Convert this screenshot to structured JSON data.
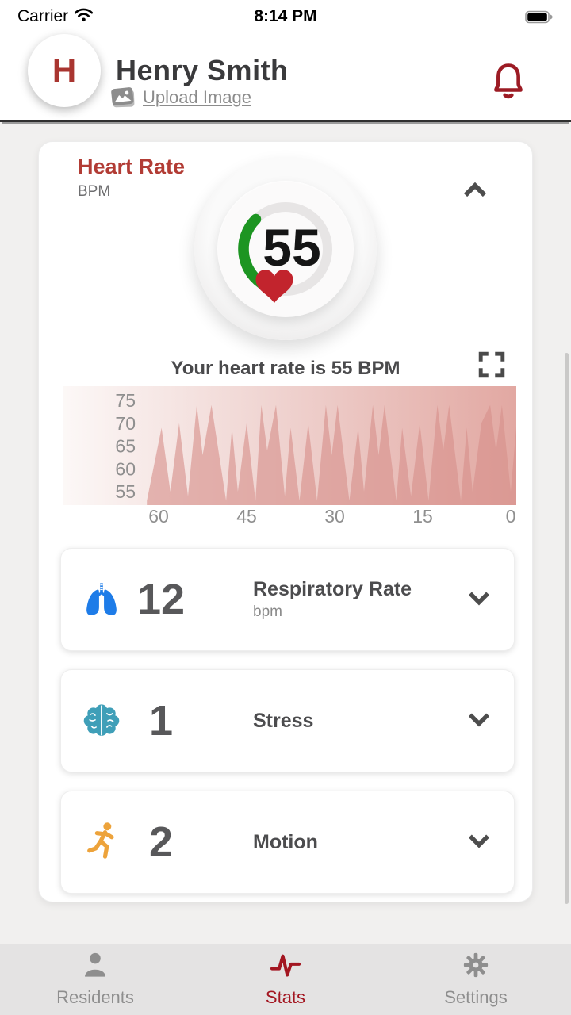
{
  "status_bar": {
    "carrier": "Carrier",
    "time": "8:14 PM"
  },
  "header": {
    "avatar_letter": "H",
    "name": "Henry Smith",
    "upload_label": "Upload Image"
  },
  "heart_card": {
    "title": "Heart Rate",
    "unit": "BPM",
    "value": "55",
    "caption": "Your heart rate is 55 BPM"
  },
  "metrics": [
    {
      "icon": "lungs-icon",
      "value": "12",
      "label": "Respiratory Rate",
      "unit": "bpm",
      "icon_color": "#1e7ce8"
    },
    {
      "icon": "brain-icon",
      "value": "1",
      "label": "Stress",
      "unit": "",
      "icon_color": "#3f9fb8"
    },
    {
      "icon": "running-icon",
      "value": "2",
      "label": "Motion",
      "unit": "",
      "icon_color": "#eda33b"
    }
  ],
  "tab_bar": {
    "items": [
      {
        "label": "Residents",
        "icon": "person-icon",
        "active": false
      },
      {
        "label": "Stats",
        "icon": "pulse-icon",
        "active": true
      },
      {
        "label": "Settings",
        "icon": "gear-icon",
        "active": false
      }
    ],
    "active_color": "#a31621",
    "inactive_color": "#8e8e8e"
  },
  "colors": {
    "accent_red": "#b23c35",
    "bell_red": "#9c1b24",
    "gauge_green": "#1d9522",
    "heart_red": "#c2242d",
    "chart_fill": "#d6908a",
    "chart_bg_left": "#fcf8f7",
    "chart_bg_right": "#e2a8a2"
  },
  "chart_data": {
    "type": "area",
    "title": "Your heart rate is 55 BPM",
    "xlabel": "",
    "ylabel": "",
    "x_ticks": [
      60,
      45,
      30,
      15,
      0
    ],
    "y_ticks": [
      75,
      70,
      65,
      60,
      55
    ],
    "x_range": [
      62,
      -1
    ],
    "y_range": [
      52,
      77
    ],
    "grid": false,
    "legend": "none",
    "series": [
      {
        "name": "heart_rate_bpm",
        "points": [
          [
            62,
            53
          ],
          [
            59.5,
            69
          ],
          [
            58,
            55
          ],
          [
            56.5,
            70
          ],
          [
            55,
            54
          ],
          [
            53.5,
            74
          ],
          [
            52.5,
            63
          ],
          [
            51,
            74
          ],
          [
            48.5,
            53
          ],
          [
            47.5,
            69
          ],
          [
            46.5,
            55
          ],
          [
            45,
            70
          ],
          [
            43.5,
            53
          ],
          [
            42.5,
            74
          ],
          [
            41.5,
            64
          ],
          [
            40,
            74
          ],
          [
            38.5,
            54
          ],
          [
            37.5,
            69
          ],
          [
            36,
            53
          ],
          [
            34.5,
            70
          ],
          [
            33,
            53
          ],
          [
            31.5,
            74
          ],
          [
            30.5,
            63
          ],
          [
            29.5,
            74
          ],
          [
            27.5,
            53
          ],
          [
            26,
            69
          ],
          [
            25,
            55
          ],
          [
            23.5,
            74
          ],
          [
            22.5,
            63
          ],
          [
            21.5,
            74
          ],
          [
            19.5,
            53
          ],
          [
            18.5,
            69
          ],
          [
            17,
            54
          ],
          [
            15.5,
            70
          ],
          [
            14,
            53
          ],
          [
            12.5,
            74
          ],
          [
            11.5,
            64
          ],
          [
            10.5,
            74
          ],
          [
            8.5,
            53
          ],
          [
            7.5,
            69
          ],
          [
            6.5,
            55
          ],
          [
            5,
            70
          ],
          [
            3.5,
            74
          ],
          [
            2.5,
            64
          ],
          [
            1.5,
            74
          ],
          [
            0,
            55
          ],
          [
            -1,
            70
          ]
        ]
      }
    ]
  }
}
